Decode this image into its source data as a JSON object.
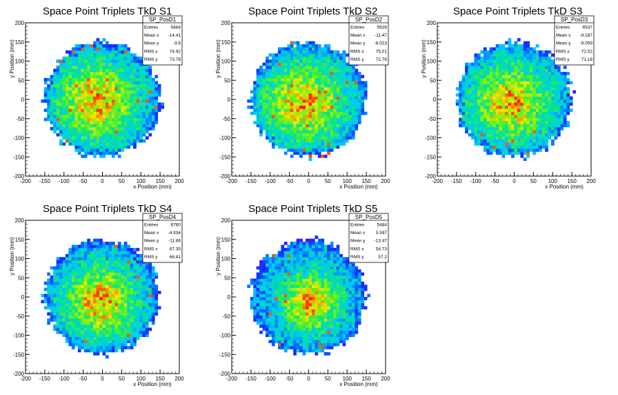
{
  "chart_data": [
    {
      "type": "heatmap",
      "title": "Space Point Triplets TkD S1",
      "xlabel": "x Position (mm)",
      "ylabel": "y Position (mm)",
      "xlim": [
        -200,
        200
      ],
      "ylim": [
        -200,
        200
      ],
      "xticks": [
        -200,
        -150,
        -100,
        -50,
        0,
        50,
        100,
        150,
        200
      ],
      "yticks": [
        -200,
        -150,
        -100,
        -50,
        0,
        50,
        100,
        150,
        200
      ],
      "palette": "rainbow",
      "grid": false,
      "stats": {
        "name": "SP_PosD1",
        "rows": [
          [
            "Entries",
            "5484"
          ],
          [
            "Mean x",
            "-14.41"
          ],
          [
            "Mean y",
            "-3.6"
          ],
          [
            "RMS x",
            "74.92"
          ],
          [
            "RMS y",
            "73.78"
          ]
        ]
      },
      "distribution": {
        "x_range": [
          -160,
          160
        ],
        "y_range": [
          -160,
          160
        ],
        "mean_x": -14.41,
        "mean_y": -3.6,
        "rms_x": 74.92,
        "rms_y": 73.78
      }
    },
    {
      "type": "heatmap",
      "title": "Space Point Triplets TkD S2",
      "xlabel": "x Position (mm)",
      "ylabel": "y Position (mm)",
      "xlim": [
        -200,
        200
      ],
      "ylim": [
        -200,
        200
      ],
      "xticks": [
        -200,
        -150,
        -100,
        -50,
        0,
        50,
        100,
        150,
        200
      ],
      "yticks": [
        -200,
        -150,
        -100,
        -50,
        0,
        50,
        100,
        150,
        200
      ],
      "palette": "rainbow",
      "grid": false,
      "stats": {
        "name": "SP_PosD2",
        "rows": [
          [
            "Entries",
            "5926"
          ],
          [
            "Mean x",
            "-11.47"
          ],
          [
            "Mean y",
            "-8.023"
          ],
          [
            "RMS x",
            "75.01"
          ],
          [
            "RMS y",
            "72.78"
          ]
        ]
      },
      "distribution": {
        "x_range": [
          -160,
          160
        ],
        "y_range": [
          -160,
          160
        ],
        "mean_x": -11.47,
        "mean_y": -8.023,
        "rms_x": 75.01,
        "rms_y": 72.78
      }
    },
    {
      "type": "heatmap",
      "title": "Space Point Triplets TkD S3",
      "xlabel": "x Position (mm)",
      "ylabel": "y Position (mm)",
      "xlim": [
        -200,
        200
      ],
      "ylim": [
        -200,
        200
      ],
      "xticks": [
        -200,
        -150,
        -100,
        -50,
        0,
        50,
        100,
        150,
        200
      ],
      "yticks": [
        -200,
        -150,
        -100,
        -50,
        0,
        50,
        100,
        150,
        200
      ],
      "palette": "rainbow",
      "grid": false,
      "stats": {
        "name": "SP_PosD3",
        "rows": [
          [
            "Entries",
            "6537"
          ],
          [
            "Mean x",
            "-9.187"
          ],
          [
            "Mean y",
            "-9.059"
          ],
          [
            "RMS x",
            "72.52"
          ],
          [
            "RMS y",
            "71.18"
          ]
        ]
      },
      "distribution": {
        "x_range": [
          -160,
          160
        ],
        "y_range": [
          -160,
          160
        ],
        "mean_x": -9.187,
        "mean_y": -9.059,
        "rms_x": 72.52,
        "rms_y": 71.18
      }
    },
    {
      "type": "heatmap",
      "title": "Space Point Triplets TkD S4",
      "xlabel": "x Position (mm)",
      "ylabel": "y Position (mm)",
      "xlim": [
        -200,
        200
      ],
      "ylim": [
        -200,
        200
      ],
      "xticks": [
        -200,
        -150,
        -100,
        -50,
        0,
        50,
        100,
        150,
        200
      ],
      "yticks": [
        -200,
        -150,
        -100,
        -50,
        0,
        50,
        100,
        150,
        200
      ],
      "palette": "rainbow",
      "grid": false,
      "stats": {
        "name": "SP_PosD4",
        "rows": [
          [
            "Entries",
            "6760"
          ],
          [
            "Mean x",
            "-4.934"
          ],
          [
            "Mean y",
            "-11.86"
          ],
          [
            "RMS x",
            "67.35"
          ],
          [
            "RMS y",
            "66.81"
          ]
        ]
      },
      "distribution": {
        "x_range": [
          -160,
          160
        ],
        "y_range": [
          -160,
          160
        ],
        "mean_x": -4.934,
        "mean_y": -11.86,
        "rms_x": 67.35,
        "rms_y": 66.81
      }
    },
    {
      "type": "heatmap",
      "title": "Space Point Triplets TkD S5",
      "xlabel": "x Position (mm)",
      "ylabel": "y Position (mm)",
      "xlim": [
        -200,
        200
      ],
      "ylim": [
        -200,
        200
      ],
      "xticks": [
        -200,
        -150,
        -100,
        -50,
        0,
        50,
        100,
        150,
        200
      ],
      "yticks": [
        -200,
        -150,
        -100,
        -50,
        0,
        50,
        100,
        150,
        200
      ],
      "palette": "rainbow",
      "grid": false,
      "stats": {
        "name": "SP_PosD5",
        "rows": [
          [
            "Entries",
            "5484"
          ],
          [
            "Mean x",
            "5.597"
          ],
          [
            "Mean y",
            "-13.47"
          ],
          [
            "RMS x",
            "54.73"
          ],
          [
            "RMS y",
            "57.2"
          ]
        ]
      },
      "distribution": {
        "x_range": [
          -160,
          160
        ],
        "y_range": [
          -160,
          160
        ],
        "mean_x": 5.597,
        "mean_y": -13.47,
        "rms_x": 54.73,
        "rms_y": 57.2
      }
    }
  ]
}
